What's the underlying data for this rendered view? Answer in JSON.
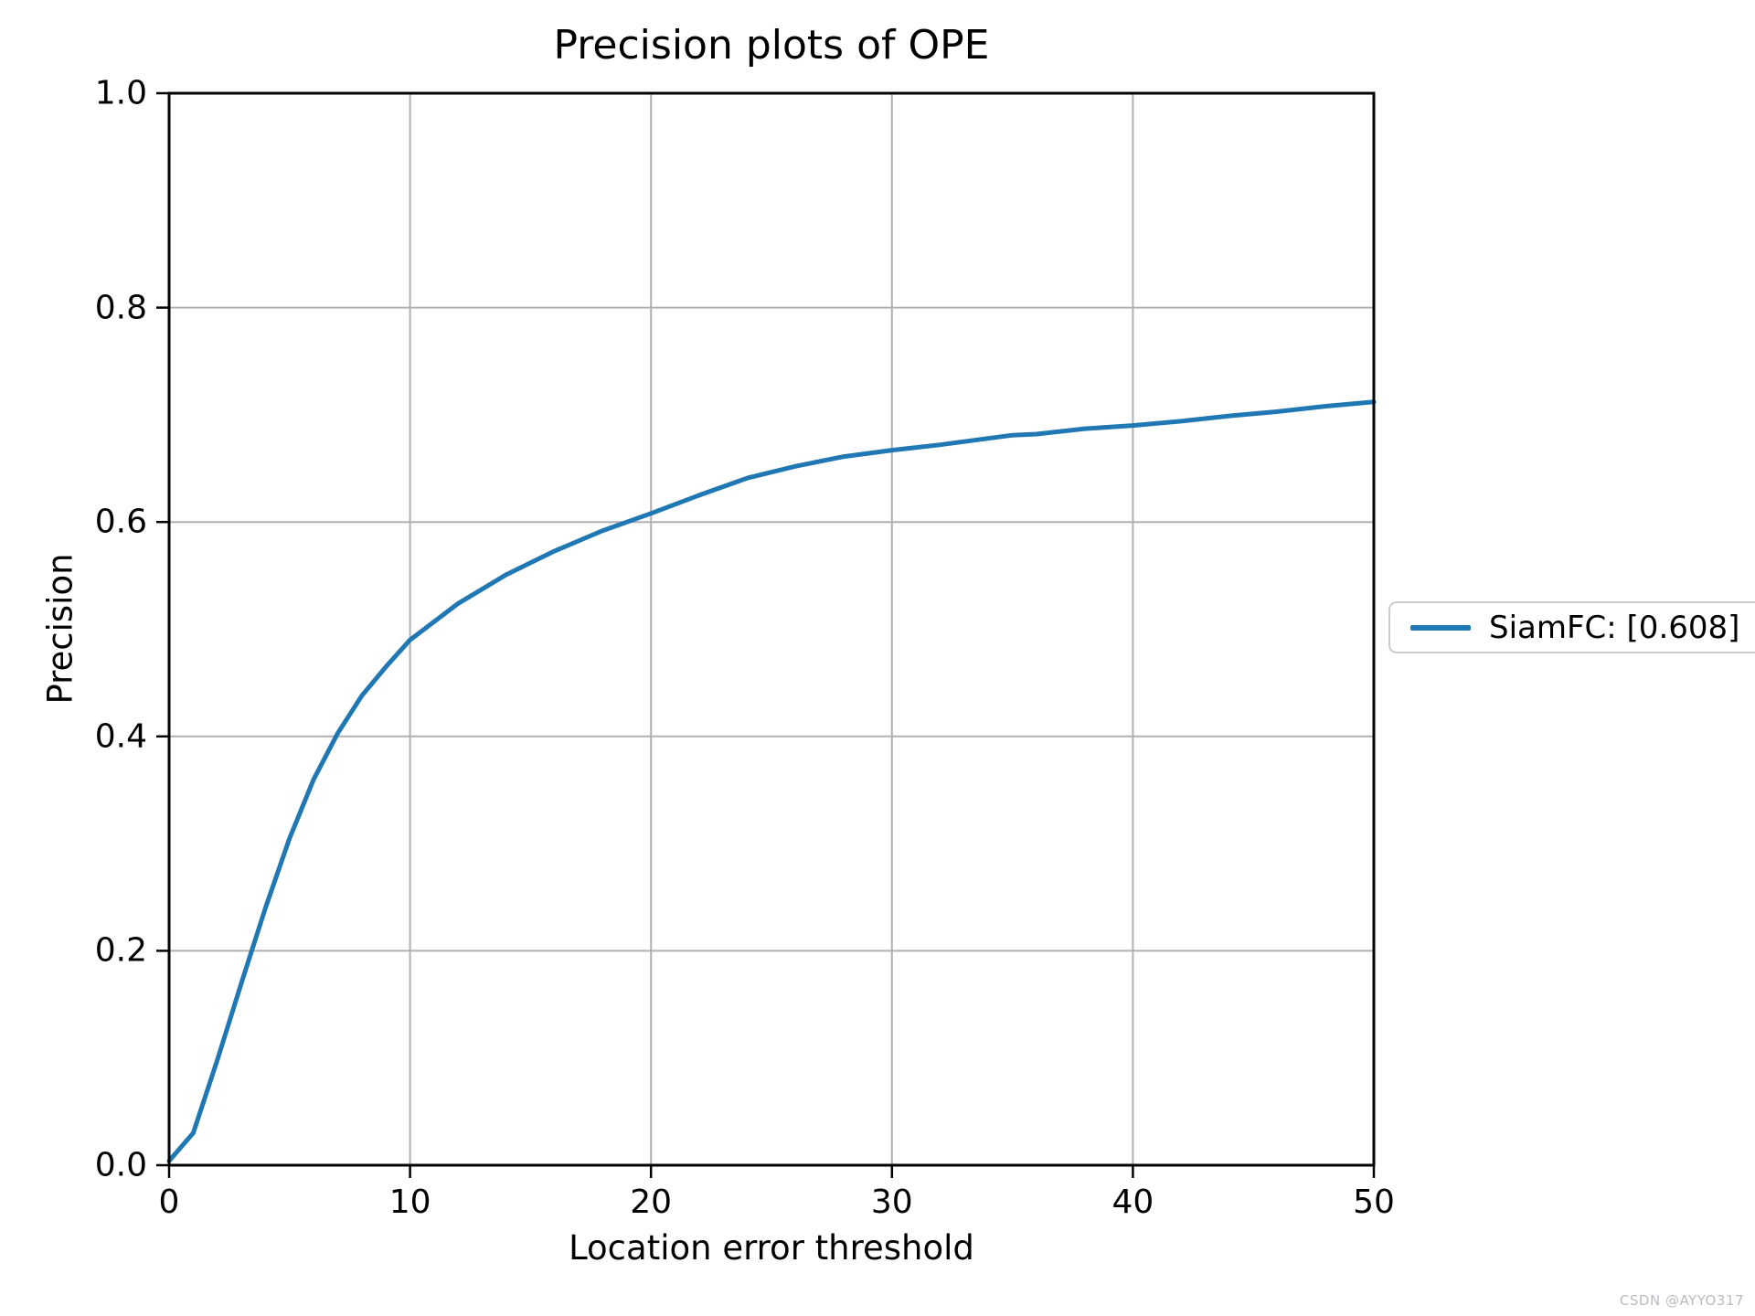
{
  "chart_data": {
    "type": "line",
    "title": "Precision plots of OPE",
    "xlabel": "Location error threshold",
    "ylabel": "Precision",
    "xlim": [
      0,
      50
    ],
    "ylim": [
      0.0,
      1.0
    ],
    "xticks": [
      "0",
      "10",
      "20",
      "30",
      "40",
      "50"
    ],
    "yticks": [
      "0.0",
      "0.2",
      "0.4",
      "0.6",
      "0.8",
      "1.0"
    ],
    "grid": true,
    "legend_position": "outside-right",
    "series": [
      {
        "name": "SiamFC: [0.608]",
        "color": "#1f77b4",
        "x": [
          0,
          1,
          2,
          3,
          4,
          5,
          6,
          7,
          8,
          9,
          10,
          12,
          14,
          16,
          18,
          20,
          22,
          24,
          26,
          28,
          30,
          32,
          34,
          35,
          36,
          38,
          40,
          42,
          44,
          46,
          48,
          50
        ],
        "y": [
          0.004,
          0.03,
          0.098,
          0.17,
          0.24,
          0.305,
          0.36,
          0.403,
          0.438,
          0.465,
          0.49,
          0.524,
          0.551,
          0.573,
          0.592,
          0.608,
          0.625,
          0.641,
          0.652,
          0.661,
          0.667,
          0.672,
          0.678,
          0.681,
          0.682,
          0.687,
          0.69,
          0.694,
          0.699,
          0.703,
          0.708,
          0.712
        ]
      }
    ]
  },
  "colors": {
    "line": "#1f77b4",
    "grid": "#b0b0b0",
    "spine": "#000000",
    "tick": "#000000",
    "legend_border": "#cccccc",
    "watermark": "#b8bcc2"
  },
  "watermark": {
    "text": "CSDN @AYYO317"
  }
}
